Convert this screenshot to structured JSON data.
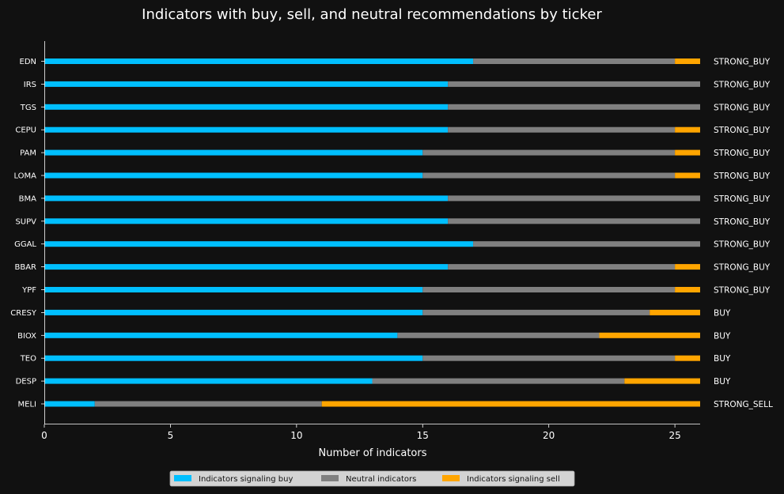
{
  "chart_data": {
    "type": "bar",
    "orientation": "horizontal",
    "stacked": true,
    "title": "Indicators with buy, sell, and neutral recommendations by ticker",
    "xlabel": "Number of indicators",
    "ylabel": "",
    "xlim": [
      0,
      26
    ],
    "xticks": [
      0,
      5,
      10,
      15,
      20,
      25
    ],
    "categories": [
      "EDN",
      "IRS",
      "TGS",
      "CEPU",
      "PAM",
      "LOMA",
      "BMA",
      "SUPV",
      "GGAL",
      "BBAR",
      "YPF",
      "CRESY",
      "BIOX",
      "TEO",
      "DESP",
      "MELI"
    ],
    "series": [
      {
        "name": "Indicators signaling buy",
        "color": "#00bfff",
        "values": [
          17,
          16,
          16,
          16,
          15,
          15,
          16,
          16,
          17,
          16,
          15,
          15,
          14,
          15,
          13,
          2
        ]
      },
      {
        "name": "Neutral indicators",
        "color": "#808080",
        "values": [
          8,
          10,
          10,
          9,
          10,
          10,
          10,
          10,
          9,
          9,
          10,
          9,
          8,
          10,
          10,
          9
        ]
      },
      {
        "name": "Indicators signaling sell",
        "color": "#ffa500",
        "values": [
          1,
          0,
          0,
          1,
          1,
          1,
          0,
          0,
          0,
          1,
          1,
          2,
          4,
          1,
          3,
          15
        ]
      }
    ],
    "recommendations": [
      "STRONG_BUY",
      "STRONG_BUY",
      "STRONG_BUY",
      "STRONG_BUY",
      "STRONG_BUY",
      "STRONG_BUY",
      "STRONG_BUY",
      "STRONG_BUY",
      "STRONG_BUY",
      "STRONG_BUY",
      "STRONG_BUY",
      "BUY",
      "BUY",
      "BUY",
      "BUY",
      "STRONG_SELL"
    ],
    "legend_position": "bottom-center",
    "grid": false
  }
}
